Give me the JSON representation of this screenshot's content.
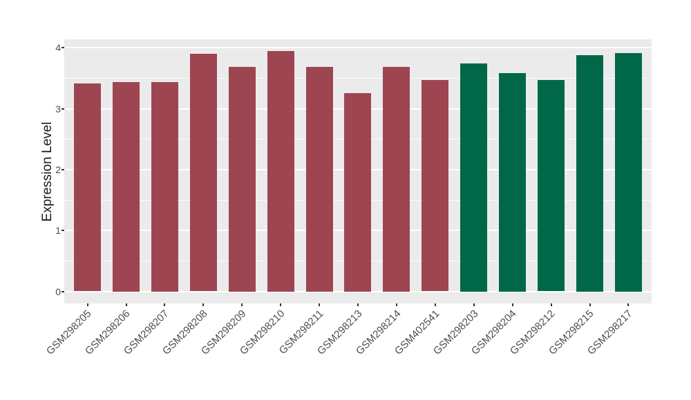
{
  "chart_data": {
    "type": "bar",
    "title": "",
    "xlabel": "",
    "ylabel": "Expression Level",
    "categories": [
      "GSM298205",
      "GSM298206",
      "GSM298207",
      "GSM298208",
      "GSM298209",
      "GSM298210",
      "GSM298211",
      "GSM298213",
      "GSM298214",
      "GSM402541",
      "GSM298203",
      "GSM298204",
      "GSM298212",
      "GSM298215",
      "GSM298217"
    ],
    "values": [
      3.41,
      3.44,
      3.44,
      3.9,
      3.69,
      3.94,
      3.69,
      3.26,
      3.69,
      3.47,
      3.74,
      3.58,
      3.47,
      3.88,
      3.91
    ],
    "bar_colors": [
      "#9E4552",
      "#9E4552",
      "#9E4552",
      "#9E4552",
      "#9E4552",
      "#9E4552",
      "#9E4552",
      "#9E4552",
      "#9E4552",
      "#9E4552",
      "#006849",
      "#006849",
      "#006849",
      "#006849",
      "#006849"
    ],
    "yticks": [
      0,
      1,
      2,
      3,
      4
    ],
    "y_minor_ticks": [
      0.5,
      1.5,
      2.5,
      3.5
    ],
    "ylim": [
      -0.197,
      4.137
    ],
    "grid": true,
    "legend": "none",
    "x_label_angle": -45,
    "colors": {
      "bar_red": "#9E4552",
      "bar_green": "#006849",
      "panel_bg": "#EBEBEB",
      "grid": "#FFFFFF",
      "tick_label": "#4D4D4D",
      "axis_title": "#1A1A1A",
      "tick_mark": "#333333",
      "figure_bg": "#FFFFFF"
    }
  }
}
